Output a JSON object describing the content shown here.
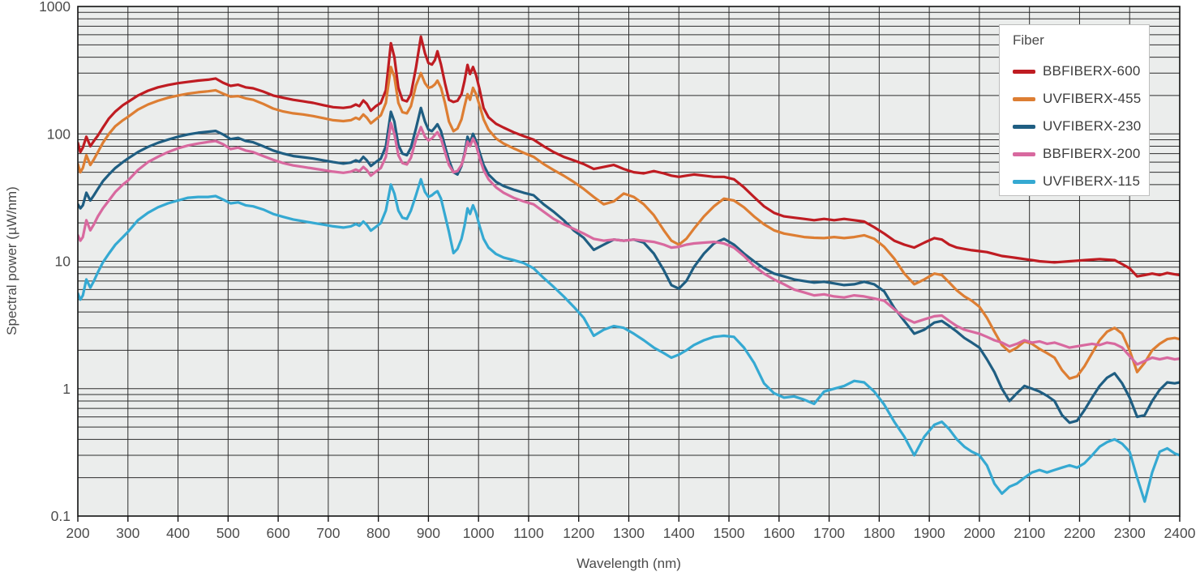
{
  "chart_data": {
    "type": "line",
    "title": "",
    "xlabel": "Wavelength (nm)",
    "ylabel": "Spectral power (µW/nm)",
    "legend_title": "Fiber",
    "legend_position": "top-right",
    "grid": "on",
    "x_axis": {
      "min": 200,
      "max": 2400,
      "ticks": [
        200,
        300,
        400,
        500,
        600,
        700,
        800,
        900,
        1000,
        1100,
        1200,
        1300,
        1400,
        1500,
        1600,
        1700,
        1800,
        1900,
        2000,
        2100,
        2200,
        2300,
        2400
      ]
    },
    "y_axis": {
      "scale": "log",
      "min": 0.1,
      "max": 1000,
      "tick_labels": [
        "1000",
        "100",
        "10",
        "1",
        "0.1"
      ],
      "tick_values": [
        1000,
        100,
        10,
        1,
        0.1
      ]
    },
    "colors": {
      "plot_bg": "#ebedec",
      "grid": "#2e2e2e",
      "border": "#111111",
      "text": "#4d4d4d"
    },
    "wavelengths_nm": [
      200,
      205,
      210,
      217,
      225,
      232,
      240,
      250,
      262,
      275,
      290,
      300,
      320,
      340,
      360,
      380,
      400,
      420,
      440,
      460,
      475,
      490,
      505,
      520,
      535,
      550,
      570,
      590,
      610,
      630,
      650,
      670,
      690,
      710,
      730,
      745,
      755,
      762,
      770,
      777,
      785,
      795,
      805,
      815,
      825,
      832,
      840,
      848,
      857,
      865,
      875,
      885,
      893,
      900,
      907,
      913,
      918,
      925,
      933,
      941,
      950,
      958,
      966,
      972,
      978,
      983,
      989,
      995,
      1002,
      1010,
      1020,
      1035,
      1050,
      1070,
      1090,
      1110,
      1130,
      1150,
      1170,
      1190,
      1210,
      1230,
      1250,
      1270,
      1290,
      1310,
      1330,
      1350,
      1370,
      1385,
      1400,
      1415,
      1430,
      1450,
      1470,
      1490,
      1510,
      1530,
      1550,
      1570,
      1590,
      1610,
      1630,
      1650,
      1670,
      1690,
      1710,
      1730,
      1750,
      1770,
      1790,
      1810,
      1830,
      1850,
      1870,
      1890,
      1910,
      1925,
      1940,
      1955,
      1970,
      1985,
      2000,
      2015,
      2030,
      2045,
      2060,
      2075,
      2090,
      2105,
      2120,
      2135,
      2150,
      2165,
      2180,
      2195,
      2210,
      2225,
      2240,
      2255,
      2270,
      2285,
      2300,
      2315,
      2330,
      2345,
      2360,
      2375,
      2390,
      2400
    ],
    "series": [
      {
        "name": "BBFIBERX-600",
        "color": "#bf1c22",
        "values": [
          85,
          72,
          78,
          95,
          80,
          88,
          97,
          112,
          132,
          150,
          168,
          178,
          200,
          218,
          232,
          242,
          250,
          256,
          262,
          266,
          272,
          252,
          238,
          243,
          232,
          228,
          215,
          200,
          192,
          185,
          180,
          175,
          168,
          162,
          160,
          163,
          170,
          165,
          183,
          172,
          152,
          165,
          175,
          220,
          515,
          400,
          230,
          185,
          180,
          205,
          330,
          580,
          430,
          360,
          350,
          380,
          445,
          350,
          250,
          185,
          178,
          182,
          205,
          260,
          348,
          295,
          335,
          290,
          225,
          160,
          135,
          120,
          112,
          103,
          96,
          90,
          80,
          72,
          66,
          62,
          58,
          53,
          55,
          57,
          53,
          50,
          49,
          51,
          49,
          47,
          46,
          47,
          48,
          47,
          46,
          46,
          44,
          38,
          32,
          27,
          24,
          22.5,
          22,
          21.5,
          21,
          21.5,
          21,
          21.5,
          21,
          20.5,
          18.5,
          16.5,
          14.5,
          13.5,
          12.8,
          14,
          15.2,
          14.8,
          13.5,
          12.8,
          12.5,
          12.2,
          12,
          11.8,
          11.4,
          11,
          10.8,
          10.6,
          10.4,
          10.2,
          10,
          9.9,
          9.8,
          9.9,
          10,
          10.1,
          10.2,
          10.3,
          10.4,
          10.3,
          10.2,
          9.5,
          8.8,
          7.6,
          7.8,
          8,
          7.8,
          8.1,
          7.9,
          7.8
        ]
      },
      {
        "name": "UVFIBERX-455",
        "color": "#dd7e33",
        "values": [
          58,
          50,
          54,
          68,
          57,
          63,
          72,
          85,
          100,
          115,
          128,
          136,
          155,
          170,
          182,
          192,
          200,
          207,
          212,
          216,
          220,
          207,
          196,
          198,
          190,
          185,
          172,
          158,
          150,
          145,
          142,
          138,
          133,
          128,
          126,
          128,
          134,
          130,
          142,
          134,
          121,
          130,
          140,
          175,
          335,
          280,
          175,
          148,
          145,
          165,
          240,
          300,
          250,
          230,
          234,
          245,
          262,
          230,
          175,
          125,
          105,
          110,
          130,
          165,
          205,
          185,
          230,
          205,
          168,
          130,
          108,
          92,
          84,
          77,
          71,
          66,
          58,
          52,
          47,
          42,
          37,
          32,
          28,
          29.5,
          34,
          32,
          28,
          23,
          17.5,
          14.5,
          13.5,
          15,
          18,
          22.5,
          27,
          31,
          30,
          26.5,
          22.5,
          19.5,
          17.5,
          16.5,
          16,
          15.5,
          15.3,
          15.2,
          15.5,
          15.2,
          15.5,
          16,
          15,
          13,
          10.5,
          8,
          6.6,
          7.2,
          8,
          7.8,
          6.8,
          5.9,
          5.3,
          4.9,
          4.4,
          3.6,
          2.8,
          2.2,
          1.95,
          2.1,
          2.35,
          2.25,
          2.05,
          1.9,
          1.75,
          1.4,
          1.2,
          1.25,
          1.5,
          1.9,
          2.4,
          2.8,
          3.0,
          2.7,
          2.0,
          1.35,
          1.6,
          2.0,
          2.25,
          2.45,
          2.5,
          2.45
        ]
      },
      {
        "name": "UVFIBERX-230",
        "color": "#1f5e82",
        "values": [
          28,
          26,
          27.5,
          34.5,
          30,
          33,
          37,
          42.5,
          48,
          54,
          60,
          64,
          72,
          79,
          85,
          90,
          95,
          99,
          102,
          104,
          105.5,
          99,
          91,
          93,
          88,
          86,
          80,
          74,
          70,
          67,
          65.5,
          64,
          62,
          60,
          58.5,
          59.5,
          62,
          60.5,
          66,
          62,
          56,
          60,
          64,
          80,
          149,
          125,
          82,
          70,
          68,
          78,
          110,
          160,
          125,
          108,
          105,
          112,
          119,
          105,
          80,
          62,
          50,
          48,
          56,
          70,
          95,
          85,
          100,
          88,
          72,
          57,
          48,
          42,
          39,
          36.5,
          34.5,
          33,
          28,
          24.5,
          21,
          17.5,
          15.3,
          12.3,
          13.5,
          14.8,
          14.5,
          14.8,
          14,
          11.5,
          8.5,
          6.5,
          6.1,
          7,
          9,
          11.5,
          13.8,
          15,
          13.5,
          11.5,
          10,
          8.8,
          8,
          7.6,
          7.2,
          7,
          6.8,
          6.9,
          6.7,
          6.5,
          6.6,
          6.9,
          6.6,
          5.8,
          4.3,
          3.4,
          2.7,
          2.9,
          3.3,
          3.4,
          3.1,
          2.8,
          2.5,
          2.3,
          2.1,
          1.7,
          1.35,
          1.0,
          0.8,
          0.92,
          1.05,
          1.0,
          0.95,
          0.88,
          0.8,
          0.62,
          0.54,
          0.56,
          0.68,
          0.85,
          1.05,
          1.22,
          1.32,
          1.1,
          0.85,
          0.6,
          0.62,
          0.8,
          0.98,
          1.12,
          1.1,
          1.12
        ]
      },
      {
        "name": "BBFIBERX-200",
        "color": "#d8699f",
        "values": [
          16,
          14.5,
          15.5,
          21,
          17.5,
          19.5,
          22.5,
          26,
          30,
          35,
          40,
          43,
          52,
          60,
          66,
          72,
          77,
          81,
          84,
          86.5,
          88,
          83,
          76,
          78,
          74,
          72,
          67,
          62.5,
          59,
          56.5,
          55,
          53.5,
          52,
          50.5,
          49.5,
          50.5,
          52.5,
          51,
          55,
          52,
          47,
          50.5,
          54,
          66,
          122,
          100,
          68,
          59,
          57.5,
          65,
          90,
          113,
          95,
          89,
          92,
          98,
          103,
          92,
          72,
          57,
          50,
          51,
          57,
          68,
          87,
          80,
          92,
          82,
          65,
          52,
          44,
          38,
          34.5,
          31.5,
          29.5,
          28,
          24.5,
          21.5,
          19.5,
          18,
          16.5,
          15,
          14.5,
          14.8,
          14.5,
          14.8,
          14.5,
          14.2,
          13.5,
          12.8,
          13,
          13.5,
          13.8,
          14,
          14.2,
          13.8,
          12.8,
          11,
          9.2,
          8,
          7.2,
          6.6,
          6,
          5.7,
          5.4,
          5.5,
          5.3,
          5.2,
          5.4,
          5.3,
          5.1,
          4.9,
          4.2,
          3.6,
          3.3,
          3.5,
          3.7,
          3.75,
          3.4,
          3.1,
          2.9,
          2.8,
          2.7,
          2.55,
          2.4,
          2.3,
          2.15,
          2.25,
          2.4,
          2.3,
          2.35,
          2.25,
          2.3,
          2.2,
          2.1,
          2.15,
          2.2,
          2.25,
          2.2,
          2.3,
          2.25,
          2.1,
          1.8,
          1.55,
          1.65,
          1.75,
          1.7,
          1.75,
          1.7,
          1.72
        ]
      },
      {
        "name": "UVFIBERX-115",
        "color": "#35a9d2",
        "values": [
          5.6,
          5.0,
          5.4,
          7.2,
          6.2,
          7.0,
          8.2,
          9.8,
          11.5,
          13.5,
          15.5,
          17,
          21,
          24,
          26.5,
          28.5,
          30,
          31.5,
          32,
          32,
          32.5,
          30.5,
          28.5,
          29,
          27.5,
          27,
          25.5,
          23.5,
          22.3,
          21.3,
          20.6,
          20,
          19.4,
          18.8,
          18.4,
          18.8,
          19.6,
          19,
          20.5,
          19.3,
          17.4,
          18.6,
          20,
          25,
          40,
          34,
          25,
          22,
          21.5,
          25,
          33,
          44,
          35,
          32,
          33,
          34.5,
          35.5,
          31,
          23,
          17,
          11.6,
          12.5,
          15,
          19,
          26,
          23.5,
          27.5,
          24,
          19,
          15,
          12.8,
          11.4,
          10.7,
          10.2,
          9.7,
          8.8,
          7.4,
          6.3,
          5.3,
          4.4,
          3.6,
          2.6,
          2.9,
          3.1,
          3.0,
          2.7,
          2.4,
          2.1,
          1.9,
          1.75,
          1.85,
          2.0,
          2.2,
          2.4,
          2.55,
          2.6,
          2.55,
          2.1,
          1.6,
          1.1,
          0.92,
          0.85,
          0.87,
          0.82,
          0.76,
          0.95,
          1.0,
          1.05,
          1.15,
          1.12,
          0.95,
          0.75,
          0.55,
          0.42,
          0.3,
          0.42,
          0.52,
          0.55,
          0.48,
          0.4,
          0.35,
          0.32,
          0.3,
          0.25,
          0.18,
          0.15,
          0.17,
          0.18,
          0.2,
          0.22,
          0.23,
          0.22,
          0.23,
          0.24,
          0.25,
          0.24,
          0.26,
          0.3,
          0.35,
          0.38,
          0.4,
          0.37,
          0.32,
          0.2,
          0.13,
          0.22,
          0.32,
          0.34,
          0.31,
          0.3
        ]
      }
    ]
  }
}
